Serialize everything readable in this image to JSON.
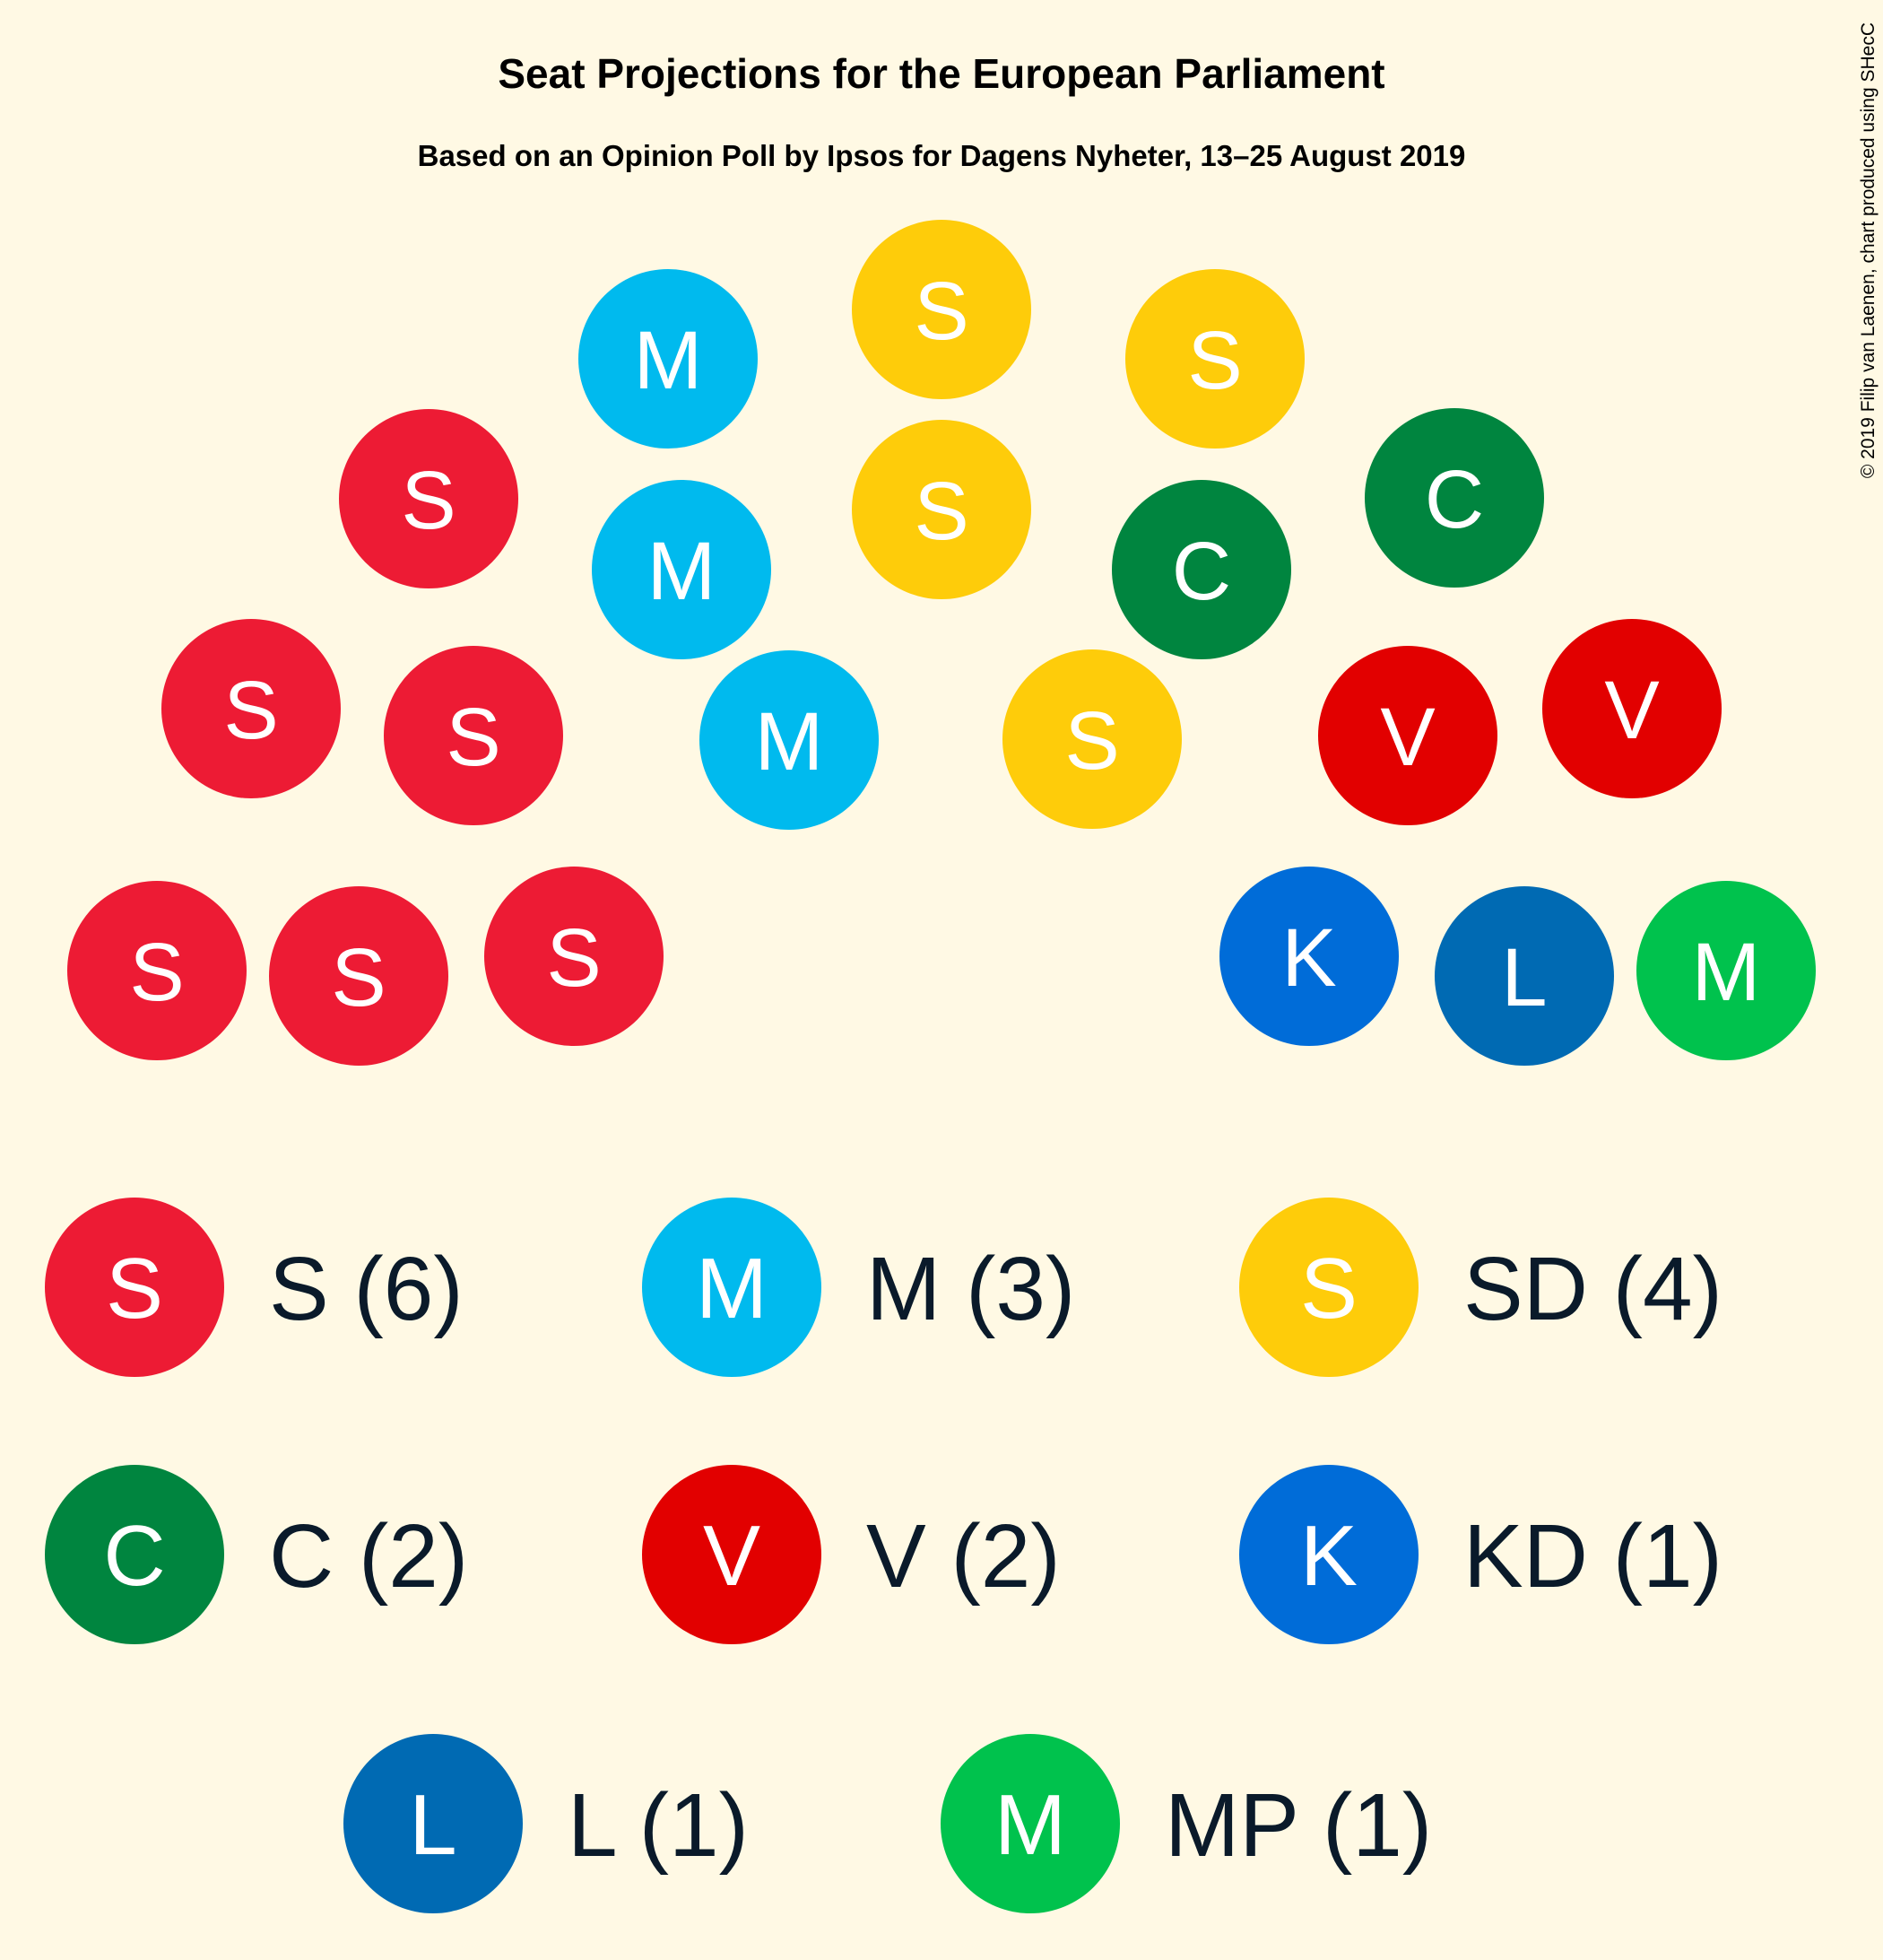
{
  "chart_data": {
    "type": "parliament",
    "title": "Seat Projections for the European Parliament",
    "subtitle": "Based on an Opinion Poll by Ipsos for Dagens Nyheter, 13–25 August 2019",
    "copyright": "© 2019 Filip van Laenen, chart produced using SHecC",
    "total_seats": 20,
    "parties": [
      {
        "key": "S",
        "symbol": "S",
        "label": "S (6)",
        "seats": 6,
        "color": "#ED1B34"
      },
      {
        "key": "M",
        "symbol": "M",
        "label": "M (3)",
        "seats": 3,
        "color": "#00BAEE"
      },
      {
        "key": "SD",
        "symbol": "S",
        "label": "SD (4)",
        "seats": 4,
        "color": "#FECC0A"
      },
      {
        "key": "C",
        "symbol": "C",
        "label": "C (2)",
        "seats": 2,
        "color": "#00853F"
      },
      {
        "key": "V",
        "symbol": "V",
        "label": "V (2)",
        "seats": 2,
        "color": "#E20000"
      },
      {
        "key": "KD",
        "symbol": "K",
        "label": "KD (1)",
        "seats": 1,
        "color": "#006CD8"
      },
      {
        "key": "L",
        "symbol": "L",
        "label": "L (1)",
        "seats": 1,
        "color": "#006AB3"
      },
      {
        "key": "MP",
        "symbol": "M",
        "label": "MP (1)",
        "seats": 1,
        "color": "#00C24D"
      }
    ],
    "seat_order": [
      "S",
      "S",
      "S",
      "S",
      "S",
      "S",
      "M",
      "M",
      "M",
      "SD",
      "SD",
      "SD",
      "SD",
      "C",
      "C",
      "V",
      "V",
      "KD",
      "L",
      "MP"
    ]
  }
}
